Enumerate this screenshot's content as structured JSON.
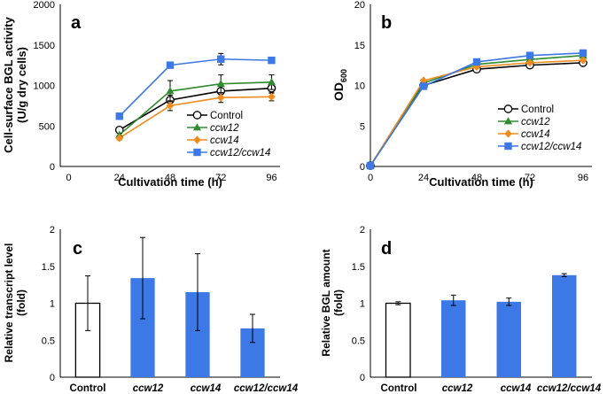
{
  "colors": {
    "control": "#000000",
    "ccw12": "#2e8b2e",
    "ccw14": "#f08c1e",
    "double": "#3c78e6",
    "bar_blue": "#3c78e6"
  },
  "chart_data": [
    {
      "id": "a",
      "type": "line",
      "panel_label": "a",
      "xlabel": "Cultivation time (h)",
      "ylabel_line1": "Cell-surface BGL activity",
      "ylabel_line2": "(U/g dry cells)",
      "xlim": [
        0,
        96
      ],
      "ylim": [
        0,
        2000
      ],
      "xticks": [
        0,
        24,
        48,
        72,
        96
      ],
      "yticks": [
        0,
        500,
        1000,
        1500,
        2000
      ],
      "legend_position": "bottom-right",
      "series": [
        {
          "name": "Control",
          "marker": "circle-open",
          "color_key": "control",
          "x": [
            24,
            48,
            72,
            96
          ],
          "y": [
            450,
            820,
            930,
            965
          ],
          "err": [
            20,
            60,
            70,
            60
          ]
        },
        {
          "name": "ccw12",
          "marker": "triangle",
          "color_key": "ccw12",
          "x": [
            24,
            48,
            72,
            96
          ],
          "y": [
            390,
            930,
            1020,
            1040
          ],
          "err": [
            20,
            130,
            110,
            90
          ]
        },
        {
          "name": "ccw14",
          "marker": "diamond",
          "color_key": "ccw14",
          "x": [
            24,
            48,
            72,
            96
          ],
          "y": [
            350,
            750,
            850,
            860
          ],
          "err": [
            20,
            60,
            60,
            50
          ]
        },
        {
          "name": "ccw12/ccw14",
          "marker": "square",
          "color_key": "double",
          "x": [
            24,
            48,
            72,
            96
          ],
          "y": [
            620,
            1250,
            1325,
            1310
          ],
          "err": [
            20,
            30,
            70,
            30
          ]
        }
      ]
    },
    {
      "id": "b",
      "type": "line",
      "panel_label": "b",
      "xlabel": "Cultivation time (h)",
      "ylabel_main": "OD",
      "ylabel_sub": "600",
      "xlim": [
        0,
        96
      ],
      "ylim": [
        0,
        20
      ],
      "xticks": [
        0,
        24,
        48,
        72,
        96
      ],
      "yticks": [
        0,
        5,
        10,
        15,
        20
      ],
      "legend_position": "bottom-right",
      "series": [
        {
          "name": "Control",
          "marker": "circle-open",
          "color_key": "control",
          "x": [
            0,
            24,
            48,
            72,
            96
          ],
          "y": [
            0.1,
            10.0,
            12.0,
            12.5,
            12.8
          ],
          "err": [
            0,
            0,
            0,
            0,
            0
          ]
        },
        {
          "name": "ccw12",
          "marker": "triangle",
          "color_key": "ccw12",
          "x": [
            0,
            24,
            48,
            72,
            96
          ],
          "y": [
            0.1,
            10.3,
            12.6,
            13.2,
            13.7
          ],
          "err": [
            0,
            0,
            0,
            0,
            0
          ]
        },
        {
          "name": "ccw14",
          "marker": "diamond",
          "color_key": "ccw14",
          "x": [
            0,
            24,
            48,
            72,
            96
          ],
          "y": [
            0.1,
            10.6,
            12.3,
            12.8,
            13.1
          ],
          "err": [
            0,
            0,
            0,
            0,
            0
          ]
        },
        {
          "name": "ccw12/ccw14",
          "marker": "square",
          "color_key": "double",
          "x": [
            0,
            24,
            48,
            72,
            96
          ],
          "y": [
            0.1,
            9.9,
            12.9,
            13.7,
            14.0
          ],
          "err": [
            0,
            0,
            0,
            0,
            0
          ]
        }
      ]
    },
    {
      "id": "c",
      "type": "bar",
      "panel_label": "c",
      "ylabel_line1": "Relative transcript level",
      "ylabel_line2": "(fold)",
      "ylim": [
        0,
        2
      ],
      "yticks": [
        "0",
        "0.5",
        "1",
        "1.5",
        "2"
      ],
      "ytick_values": [
        0,
        0.5,
        1,
        1.5,
        2
      ],
      "categories": [
        "Control",
        "ccw12",
        "ccw14",
        "ccw12/ccw14"
      ],
      "category_italic": [
        false,
        true,
        true,
        true
      ],
      "values": [
        1.0,
        1.34,
        1.15,
        0.66
      ],
      "err": [
        0.37,
        0.55,
        0.52,
        0.19
      ],
      "bar_fill": [
        "white",
        "blue",
        "blue",
        "blue"
      ]
    },
    {
      "id": "d",
      "type": "bar",
      "panel_label": "d",
      "ylabel_line1": "Relative BGL amount",
      "ylabel_line2": "(fold)",
      "ylim": [
        0,
        2
      ],
      "yticks": [
        "0",
        "0.5",
        "1",
        "1.5",
        "2"
      ],
      "ytick_values": [
        0,
        0.5,
        1,
        1.5,
        2
      ],
      "categories": [
        "Control",
        "ccw12",
        "ccw14",
        "ccw12/ccw14"
      ],
      "category_italic": [
        false,
        true,
        true,
        true
      ],
      "values": [
        1.0,
        1.04,
        1.02,
        1.38
      ],
      "err": [
        0.02,
        0.07,
        0.05,
        0.02
      ],
      "bar_fill": [
        "white",
        "blue",
        "blue",
        "blue"
      ]
    }
  ]
}
